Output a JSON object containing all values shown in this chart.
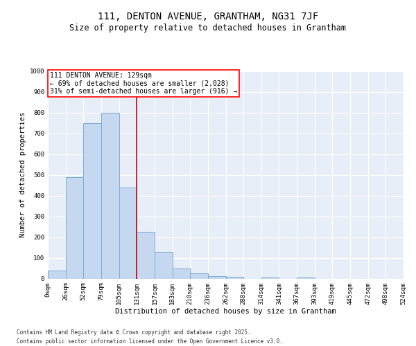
{
  "title": "111, DENTON AVENUE, GRANTHAM, NG31 7JF",
  "subtitle": "Size of property relative to detached houses in Grantham",
  "xlabel": "Distribution of detached houses by size in Grantham",
  "ylabel": "Number of detached properties",
  "bar_color": "#c5d8ef",
  "bar_edge_color": "#7aadd4",
  "bg_color": "#e8eef8",
  "grid_color": "#ffffff",
  "categories": [
    "0sqm",
    "26sqm",
    "52sqm",
    "79sqm",
    "105sqm",
    "131sqm",
    "157sqm",
    "183sqm",
    "210sqm",
    "236sqm",
    "262sqm",
    "288sqm",
    "314sqm",
    "341sqm",
    "367sqm",
    "393sqm",
    "419sqm",
    "445sqm",
    "472sqm",
    "498sqm",
    "524sqm"
  ],
  "bar_heights": [
    40,
    490,
    750,
    800,
    440,
    225,
    130,
    50,
    25,
    13,
    8,
    0,
    5,
    0,
    5,
    0,
    0,
    0,
    0,
    0
  ],
  "property_line_label": "111 DENTON AVENUE: 129sqm",
  "annotation_line1": "← 69% of detached houses are smaller (2,028)",
  "annotation_line2": "31% of semi-detached houses are larger (916) →",
  "ylim": [
    0,
    1000
  ],
  "yticks": [
    0,
    100,
    200,
    300,
    400,
    500,
    600,
    700,
    800,
    900,
    1000
  ],
  "footnote1": "Contains HM Land Registry data © Crown copyright and database right 2025.",
  "footnote2": "Contains public sector information licensed under the Open Government Licence v3.0.",
  "title_fontsize": 10,
  "subtitle_fontsize": 8.5,
  "annotation_fontsize": 7,
  "axis_label_fontsize": 7.5,
  "tick_fontsize": 6.5,
  "footnote_fontsize": 5.5
}
